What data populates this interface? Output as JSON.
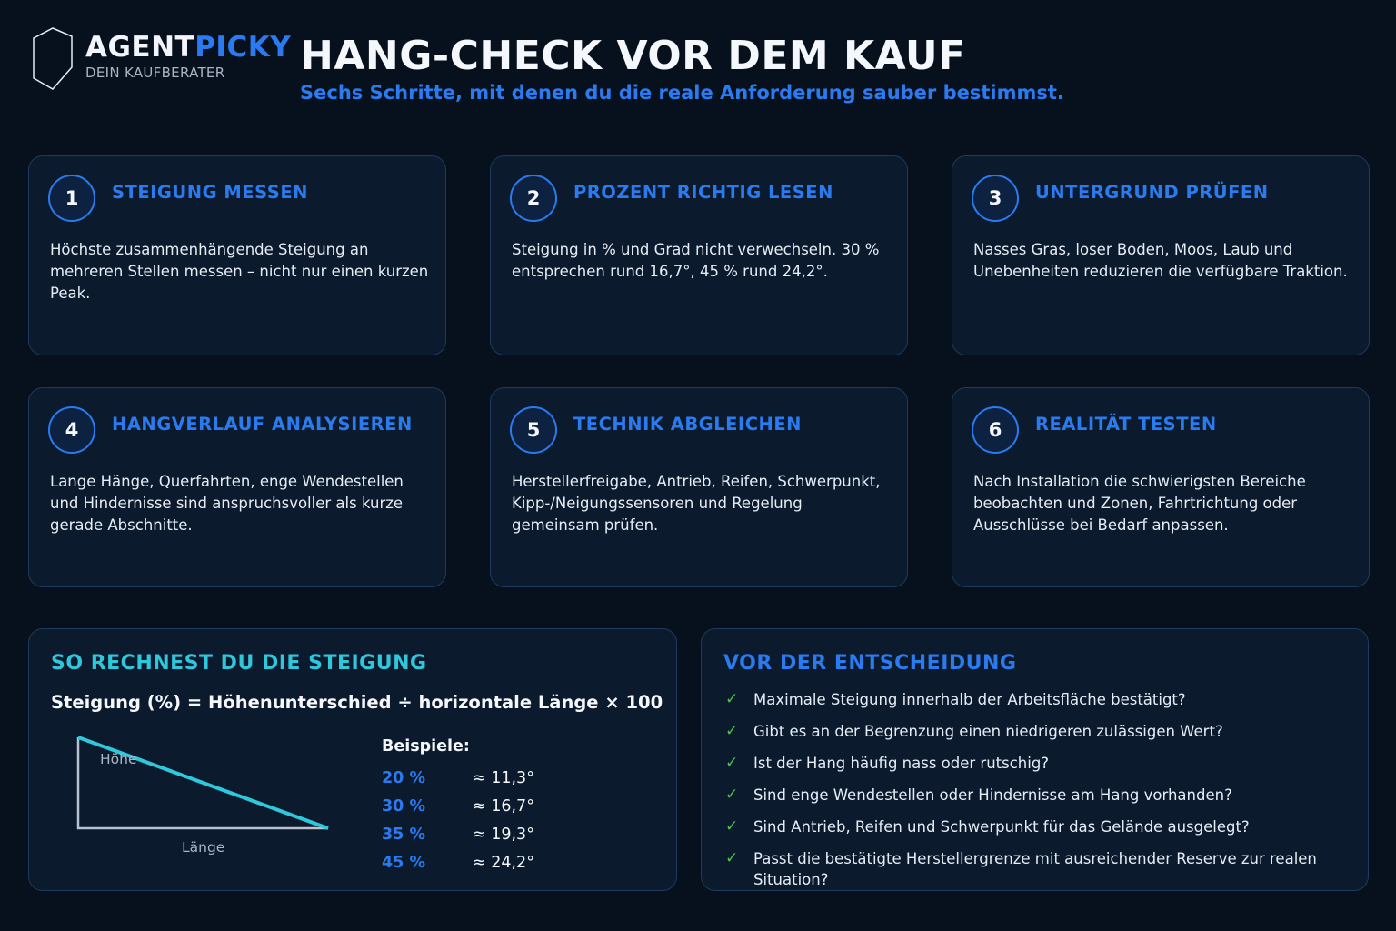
{
  "brand": {
    "name_part1": "AGENT",
    "name_part2": "PICKY",
    "tagline": "DEIN KAUFBERATER",
    "logo_icon": "shield-outline-icon"
  },
  "header": {
    "title": "HANG-CHECK VOR DEM KAUF",
    "subtitle": "Sechs Schritte, mit denen du die reale Anforderung sauber bestimmst."
  },
  "steps": [
    {
      "number": "1",
      "title": "STEIGUNG MESSEN",
      "text": "Höchste zusammenhängende Steigung an mehreren Stellen messen – nicht nur einen kurzen Peak."
    },
    {
      "number": "2",
      "title": "PROZENT RICHTIG LESEN",
      "text": "Steigung in % und Grad nicht verwechseln. 30 % entsprechen rund 16,7°, 45 % rund 24,2°."
    },
    {
      "number": "3",
      "title": "UNTERGRUND PRÜFEN",
      "text": "Nasses Gras, loser Boden, Moos, Laub und Unebenheiten reduzieren die verfügbare Traktion."
    },
    {
      "number": "4",
      "title": "HANGVERLAUF ANALYSIEREN",
      "text": "Lange Hänge, Querfahrten, enge Wendestellen und Hindernisse sind anspruchsvoller als kurze gerade Abschnitte."
    },
    {
      "number": "5",
      "title": "TECHNIK ABGLEICHEN",
      "text": "Herstellerfreigabe, Antrieb, Reifen, Schwerpunkt, Kipp-/Neigungssensoren und Regelung gemeinsam prüfen."
    },
    {
      "number": "6",
      "title": "REALITÄT TESTEN",
      "text": "Nach Installation die schwierigsten Bereiche beobachten und Zonen, Fahrtrichtung oder Ausschlüsse bei Bedarf anpassen."
    }
  ],
  "calc": {
    "title": "SO RECHNEST DU DIE STEIGUNG",
    "formula": "Steigung (%) = Höhenunterschied ÷ horizontale Länge × 100",
    "label_height": "Höhe",
    "label_length": "Länge",
    "examples_title": "Beispiele:",
    "examples": [
      {
        "percent": "20 %",
        "degrees": "≈ 11,3°"
      },
      {
        "percent": "30 %",
        "degrees": "≈ 16,7°"
      },
      {
        "percent": "35 %",
        "degrees": "≈ 19,3°"
      },
      {
        "percent": "45 %",
        "degrees": "≈ 24,2°"
      }
    ]
  },
  "decision": {
    "title": "VOR DER ENTSCHEIDUNG",
    "items": [
      "Maximale Steigung innerhalb der Arbeitsfläche bestätigt?",
      "Gibt es an der Begrenzung einen niedrigeren zulässigen Wert?",
      "Ist der Hang häufig nass oder rutschig?",
      "Sind enge Wendestellen oder Hindernisse am Hang vorhanden?",
      "Sind Antrieb, Reifen und Schwerpunkt für das Gelände ausgelegt?",
      "Passt die bestätigte Herstellergrenze mit ausreichender Reserve zur realen Situation?"
    ]
  },
  "colors": {
    "background": "#07101d",
    "card": "#0b1a2d",
    "accent_blue": "#2b7bf0",
    "accent_cyan": "#2fc7dc",
    "check_green": "#4fc04f"
  }
}
